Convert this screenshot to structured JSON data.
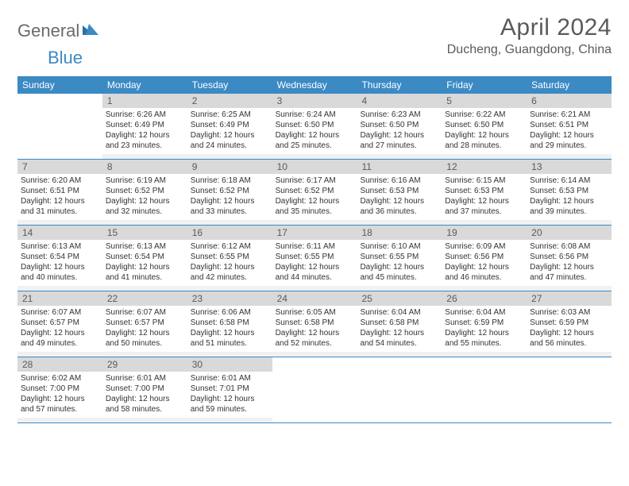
{
  "logo": {
    "part1": "General",
    "part2": "Blue"
  },
  "title": "April 2024",
  "location": "Ducheng, Guangdong, China",
  "weekdays": [
    "Sunday",
    "Monday",
    "Tuesday",
    "Wednesday",
    "Thursday",
    "Friday",
    "Saturday"
  ],
  "colors": {
    "header_bg": "#3b8ac4",
    "header_text": "#ffffff",
    "daynum_bg": "#d9d9d9",
    "row_border": "#3b8ac4",
    "logo_gray": "#6a6a6a",
    "logo_blue": "#3b8ac4"
  },
  "weeks": [
    [
      null,
      {
        "n": "1",
        "sr": "Sunrise: 6:26 AM",
        "ss": "Sunset: 6:49 PM",
        "dl": "Daylight: 12 hours and 23 minutes."
      },
      {
        "n": "2",
        "sr": "Sunrise: 6:25 AM",
        "ss": "Sunset: 6:49 PM",
        "dl": "Daylight: 12 hours and 24 minutes."
      },
      {
        "n": "3",
        "sr": "Sunrise: 6:24 AM",
        "ss": "Sunset: 6:50 PM",
        "dl": "Daylight: 12 hours and 25 minutes."
      },
      {
        "n": "4",
        "sr": "Sunrise: 6:23 AM",
        "ss": "Sunset: 6:50 PM",
        "dl": "Daylight: 12 hours and 27 minutes."
      },
      {
        "n": "5",
        "sr": "Sunrise: 6:22 AM",
        "ss": "Sunset: 6:50 PM",
        "dl": "Daylight: 12 hours and 28 minutes."
      },
      {
        "n": "6",
        "sr": "Sunrise: 6:21 AM",
        "ss": "Sunset: 6:51 PM",
        "dl": "Daylight: 12 hours and 29 minutes."
      }
    ],
    [
      {
        "n": "7",
        "sr": "Sunrise: 6:20 AM",
        "ss": "Sunset: 6:51 PM",
        "dl": "Daylight: 12 hours and 31 minutes."
      },
      {
        "n": "8",
        "sr": "Sunrise: 6:19 AM",
        "ss": "Sunset: 6:52 PM",
        "dl": "Daylight: 12 hours and 32 minutes."
      },
      {
        "n": "9",
        "sr": "Sunrise: 6:18 AM",
        "ss": "Sunset: 6:52 PM",
        "dl": "Daylight: 12 hours and 33 minutes."
      },
      {
        "n": "10",
        "sr": "Sunrise: 6:17 AM",
        "ss": "Sunset: 6:52 PM",
        "dl": "Daylight: 12 hours and 35 minutes."
      },
      {
        "n": "11",
        "sr": "Sunrise: 6:16 AM",
        "ss": "Sunset: 6:53 PM",
        "dl": "Daylight: 12 hours and 36 minutes."
      },
      {
        "n": "12",
        "sr": "Sunrise: 6:15 AM",
        "ss": "Sunset: 6:53 PM",
        "dl": "Daylight: 12 hours and 37 minutes."
      },
      {
        "n": "13",
        "sr": "Sunrise: 6:14 AM",
        "ss": "Sunset: 6:53 PM",
        "dl": "Daylight: 12 hours and 39 minutes."
      }
    ],
    [
      {
        "n": "14",
        "sr": "Sunrise: 6:13 AM",
        "ss": "Sunset: 6:54 PM",
        "dl": "Daylight: 12 hours and 40 minutes."
      },
      {
        "n": "15",
        "sr": "Sunrise: 6:13 AM",
        "ss": "Sunset: 6:54 PM",
        "dl": "Daylight: 12 hours and 41 minutes."
      },
      {
        "n": "16",
        "sr": "Sunrise: 6:12 AM",
        "ss": "Sunset: 6:55 PM",
        "dl": "Daylight: 12 hours and 42 minutes."
      },
      {
        "n": "17",
        "sr": "Sunrise: 6:11 AM",
        "ss": "Sunset: 6:55 PM",
        "dl": "Daylight: 12 hours and 44 minutes."
      },
      {
        "n": "18",
        "sr": "Sunrise: 6:10 AM",
        "ss": "Sunset: 6:55 PM",
        "dl": "Daylight: 12 hours and 45 minutes."
      },
      {
        "n": "19",
        "sr": "Sunrise: 6:09 AM",
        "ss": "Sunset: 6:56 PM",
        "dl": "Daylight: 12 hours and 46 minutes."
      },
      {
        "n": "20",
        "sr": "Sunrise: 6:08 AM",
        "ss": "Sunset: 6:56 PM",
        "dl": "Daylight: 12 hours and 47 minutes."
      }
    ],
    [
      {
        "n": "21",
        "sr": "Sunrise: 6:07 AM",
        "ss": "Sunset: 6:57 PM",
        "dl": "Daylight: 12 hours and 49 minutes."
      },
      {
        "n": "22",
        "sr": "Sunrise: 6:07 AM",
        "ss": "Sunset: 6:57 PM",
        "dl": "Daylight: 12 hours and 50 minutes."
      },
      {
        "n": "23",
        "sr": "Sunrise: 6:06 AM",
        "ss": "Sunset: 6:58 PM",
        "dl": "Daylight: 12 hours and 51 minutes."
      },
      {
        "n": "24",
        "sr": "Sunrise: 6:05 AM",
        "ss": "Sunset: 6:58 PM",
        "dl": "Daylight: 12 hours and 52 minutes."
      },
      {
        "n": "25",
        "sr": "Sunrise: 6:04 AM",
        "ss": "Sunset: 6:58 PM",
        "dl": "Daylight: 12 hours and 54 minutes."
      },
      {
        "n": "26",
        "sr": "Sunrise: 6:04 AM",
        "ss": "Sunset: 6:59 PM",
        "dl": "Daylight: 12 hours and 55 minutes."
      },
      {
        "n": "27",
        "sr": "Sunrise: 6:03 AM",
        "ss": "Sunset: 6:59 PM",
        "dl": "Daylight: 12 hours and 56 minutes."
      }
    ],
    [
      {
        "n": "28",
        "sr": "Sunrise: 6:02 AM",
        "ss": "Sunset: 7:00 PM",
        "dl": "Daylight: 12 hours and 57 minutes."
      },
      {
        "n": "29",
        "sr": "Sunrise: 6:01 AM",
        "ss": "Sunset: 7:00 PM",
        "dl": "Daylight: 12 hours and 58 minutes."
      },
      {
        "n": "30",
        "sr": "Sunrise: 6:01 AM",
        "ss": "Sunset: 7:01 PM",
        "dl": "Daylight: 12 hours and 59 minutes."
      },
      null,
      null,
      null,
      null
    ]
  ]
}
